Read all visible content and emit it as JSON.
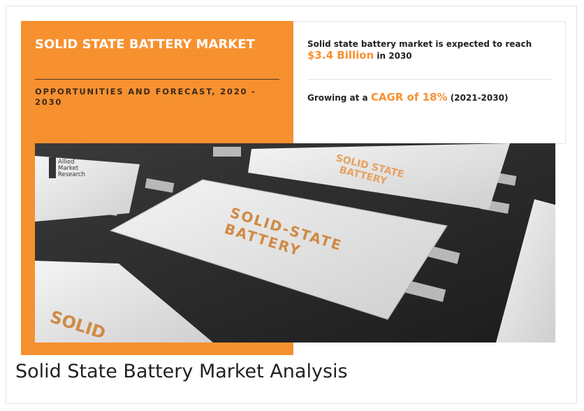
{
  "header": {
    "title": "SOLID STATE BATTERY MARKET",
    "subtitle": "OPPORTUNITIES AND FORECAST, 2020 - 2030"
  },
  "facts": [
    {
      "before": "Solid state battery market is expected to reach",
      "highlight": "$3.4 Billion",
      "after": "in 2030"
    },
    {
      "before": "Growing at a",
      "highlight": "CAGR of 18%",
      "after": "(2021-2030)"
    }
  ],
  "image": {
    "logo": [
      "Allied",
      "Market",
      "Research"
    ],
    "labels": [
      {
        "lines": [
          "SOLID STATE",
          "BATTERY"
        ]
      },
      {
        "lines": [
          "SOLID-STATE",
          "BATTERY"
        ]
      },
      {
        "lines": [
          "SOLID"
        ]
      }
    ]
  },
  "caption": "Solid State Battery Market Analysis"
}
